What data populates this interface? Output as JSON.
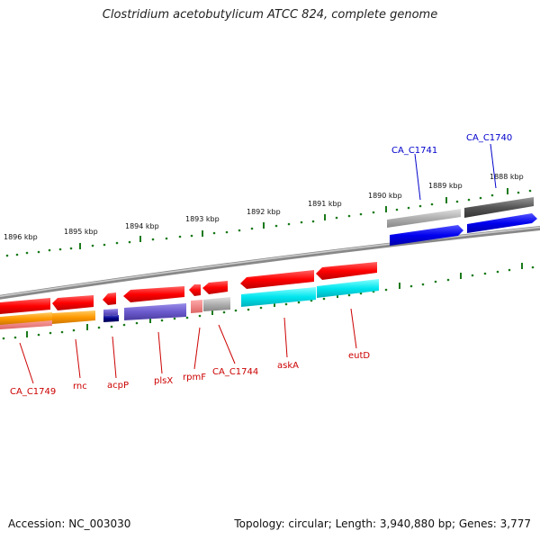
{
  "title": "Clostridium acetobutylicum ATCC 824, complete genome",
  "footer": {
    "accession": "Accession: NC_003030",
    "topology": "Topology: circular; Length: 3,940,880 bp; Genes: 3,777"
  },
  "axis": {
    "ticks": [
      "1896 kbp",
      "1895 kbp",
      "1894 kbp",
      "1893 kbp",
      "1892 kbp",
      "1891 kbp",
      "1890 kbp",
      "1889 kbp",
      "1888 kbp"
    ]
  },
  "genes": {
    "bottom": [
      "CA_C1749",
      "rnc",
      "acpP",
      "plsX",
      "rpmF",
      "CA_C1744",
      "askA",
      "eutD"
    ],
    "top": [
      "CA_C1741",
      "CA_C1740"
    ]
  },
  "colors": {
    "cds_red": "#ff0000",
    "orange": "#ff9900",
    "slate_blue": "#6a5acd",
    "navy": "#000080",
    "cyan": "#00e5ee",
    "gray": "#b0b0b0",
    "dark_gray": "#555555",
    "blue": "#0000ee",
    "tick_green": "#1a7a1a"
  }
}
